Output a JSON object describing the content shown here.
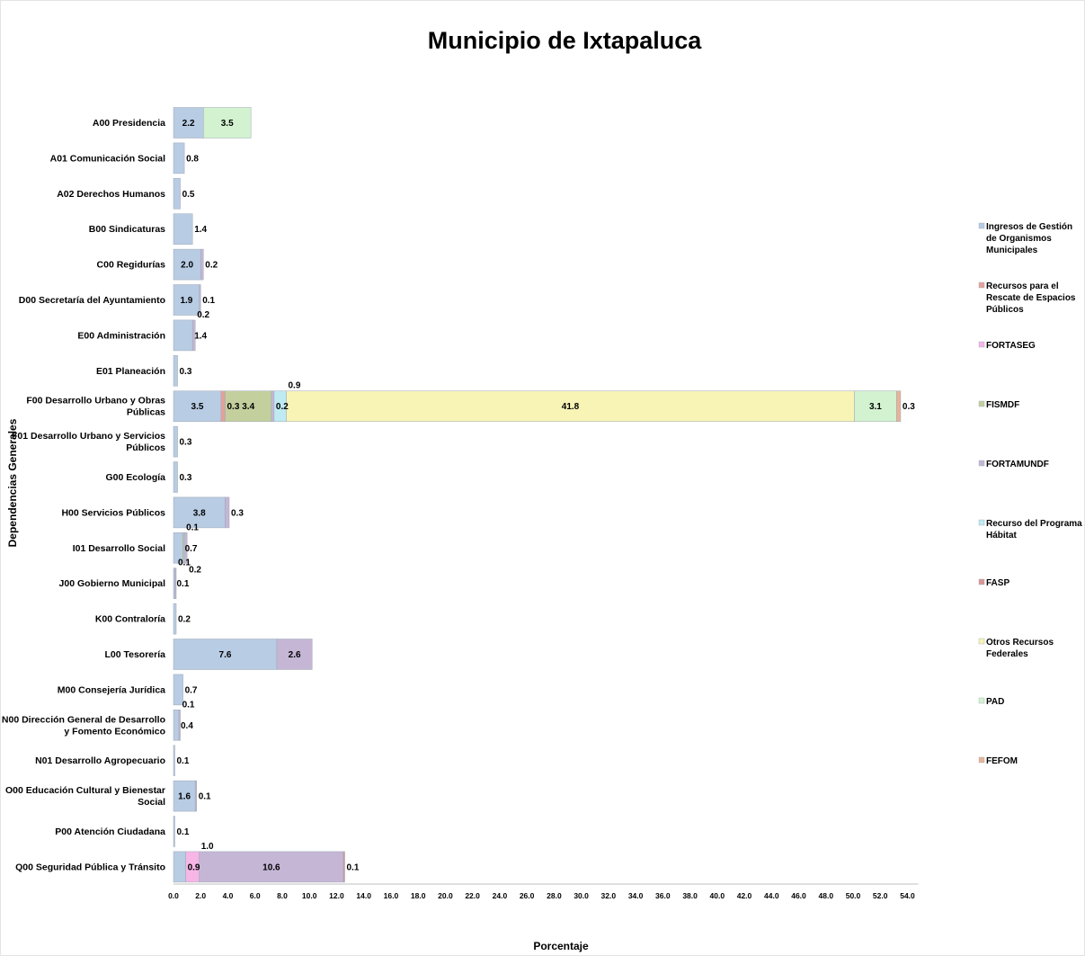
{
  "chart_data": {
    "type": "bar",
    "orientation": "horizontal",
    "stacked": true,
    "title": "Municipio de Ixtapaluca",
    "xlabel": "Porcentaje",
    "ylabel": "Dependencias  Generales",
    "xlim": [
      0,
      54
    ],
    "xtick_step": 2,
    "grid": false,
    "legend_position": "right",
    "categories": [
      "A00 Presidencia",
      "A01 Comunicación Social",
      "A02 Derechos Humanos",
      "B00 Sindicaturas",
      "C00 Regidurías",
      "D00 Secretaría del Ayuntamiento",
      "E00 Administración",
      "E01 Planeación",
      "F00 Desarrollo Urbano y Obras Públicas",
      "F01 Desarrollo Urbano y Servicios Públicos",
      "G00 Ecología",
      "H00 Servicios Públicos",
      "I01 Desarrollo Social",
      "J00 Gobierno Municipal",
      "K00 Contraloría",
      "L00 Tesorería",
      "M00 Consejería Jurídica",
      "N00 Dirección General de Desarrollo y Fomento Económico",
      "N01 Desarrollo Agropecuario",
      "O00 Educación Cultural y Bienestar Social",
      "P00 Atención Ciudadana",
      "Q00 Seguridad Pública y Tránsito"
    ],
    "category_lines": [
      [
        "A00 Presidencia"
      ],
      [
        "A01 Comunicación Social"
      ],
      [
        "A02 Derechos Humanos"
      ],
      [
        "B00 Sindicaturas"
      ],
      [
        "C00 Regidurías"
      ],
      [
        "D00 Secretaría del Ayuntamiento"
      ],
      [
        "E00 Administración"
      ],
      [
        "E01 Planeación"
      ],
      [
        "F00 Desarrollo Urbano y Obras",
        "Públicas"
      ],
      [
        "F01 Desarrollo Urbano y Servicios",
        "Públicos"
      ],
      [
        "G00 Ecología"
      ],
      [
        "H00 Servicios Públicos"
      ],
      [
        "I01 Desarrollo Social"
      ],
      [
        "J00 Gobierno Municipal"
      ],
      [
        "K00 Contraloría"
      ],
      [
        "L00 Tesorería"
      ],
      [
        "M00 Consejería Jurídica"
      ],
      [
        "N00 Dirección General de Desarrollo",
        "y Fomento Económico"
      ],
      [
        "N01 Desarrollo Agropecuario"
      ],
      [
        "O00 Educación Cultural y Bienestar",
        "Social"
      ],
      [
        "P00 Atención Ciudadana"
      ],
      [
        "Q00 Seguridad Pública y Tránsito"
      ]
    ],
    "series": [
      {
        "name": "Ingresos de Gestión de Organismos Municipales",
        "legend_lines": [
          "Ingresos de Gestión",
          "de Organismos",
          "Municipales"
        ],
        "color": "#b8cce4",
        "values": [
          2.2,
          0.8,
          0.5,
          1.4,
          2.0,
          1.9,
          1.4,
          0.3,
          3.5,
          0.3,
          0.3,
          3.8,
          0.7,
          0.1,
          0.2,
          7.6,
          0.7,
          0.4,
          0.1,
          1.6,
          0.1,
          0.9
        ]
      },
      {
        "name": "Recursos para el Rescate de Espacios Públicos",
        "legend_lines": [
          "Recursos para el",
          "Rescate de Espacios",
          "Públicos"
        ],
        "color": "#e6a09a",
        "values": [
          0,
          0,
          0,
          0,
          0,
          0,
          0,
          0,
          0.3,
          0,
          0,
          0,
          0,
          0,
          0,
          0,
          0,
          0,
          0,
          0,
          0,
          0
        ]
      },
      {
        "name": "FORTASEG",
        "legend_lines": [
          "FORTASEG"
        ],
        "color": "#f6b6e6",
        "values": [
          0,
          0,
          0,
          0,
          0,
          0,
          0,
          0,
          0,
          0,
          0,
          0,
          0,
          0,
          0,
          0,
          0,
          0,
          0,
          0,
          0,
          1.0
        ]
      },
      {
        "name": "FISMDF",
        "legend_lines": [
          "FISMDF"
        ],
        "color": "#c3d09e",
        "values": [
          0,
          0,
          0,
          0,
          0,
          0,
          0,
          0,
          3.4,
          0,
          0,
          0,
          0.1,
          0,
          0,
          0,
          0,
          0,
          0,
          0,
          0,
          0
        ]
      },
      {
        "name": "FORTAMUNDF",
        "legend_lines": [
          "FORTAMUNDF"
        ],
        "color": "#c5b6d6",
        "values": [
          0,
          0,
          0,
          0,
          0.2,
          0.1,
          0.2,
          0,
          0.2,
          0,
          0,
          0.3,
          0.2,
          0.1,
          0,
          2.6,
          0,
          0.1,
          0,
          0.1,
          0,
          10.6
        ]
      },
      {
        "name": "Recurso del Programa Hábitat",
        "legend_lines": [
          "Recurso del Programa",
          "Hábitat"
        ],
        "color": "#bfeaf2",
        "values": [
          0,
          0,
          0,
          0,
          0,
          0,
          0,
          0,
          0.9,
          0,
          0,
          0,
          0,
          0,
          0,
          0,
          0,
          0,
          0,
          0,
          0,
          0
        ]
      },
      {
        "name": "FASP",
        "legend_lines": [
          "FASP"
        ],
        "color": "#d99694",
        "values": [
          0,
          0,
          0,
          0,
          0,
          0,
          0,
          0,
          0,
          0,
          0,
          0,
          0,
          0,
          0,
          0,
          0,
          0,
          0,
          0,
          0,
          0.1
        ]
      },
      {
        "name": "Otros Recursos Federales",
        "legend_lines": [
          "Otros Recursos",
          "Federales"
        ],
        "color": "#f7f4b6",
        "values": [
          0,
          0,
          0,
          0,
          0,
          0,
          0,
          0,
          41.8,
          0,
          0,
          0,
          0,
          0,
          0,
          0,
          0,
          0,
          0,
          0,
          0,
          0
        ]
      },
      {
        "name": "PAD",
        "legend_lines": [
          "PAD"
        ],
        "color": "#d2f2d0",
        "values": [
          3.5,
          0,
          0,
          0,
          0,
          0,
          0,
          0,
          3.1,
          0,
          0,
          0,
          0,
          0,
          0,
          0,
          0,
          0,
          0,
          0,
          0,
          0
        ]
      },
      {
        "name": "FEFOM",
        "legend_lines": [
          "FEFOM"
        ],
        "color": "#e8b496",
        "values": [
          0,
          0,
          0,
          0,
          0,
          0,
          0,
          0,
          0.3,
          0,
          0,
          0,
          0,
          0,
          0,
          0,
          0,
          0,
          0,
          0,
          0,
          0
        ]
      }
    ]
  }
}
